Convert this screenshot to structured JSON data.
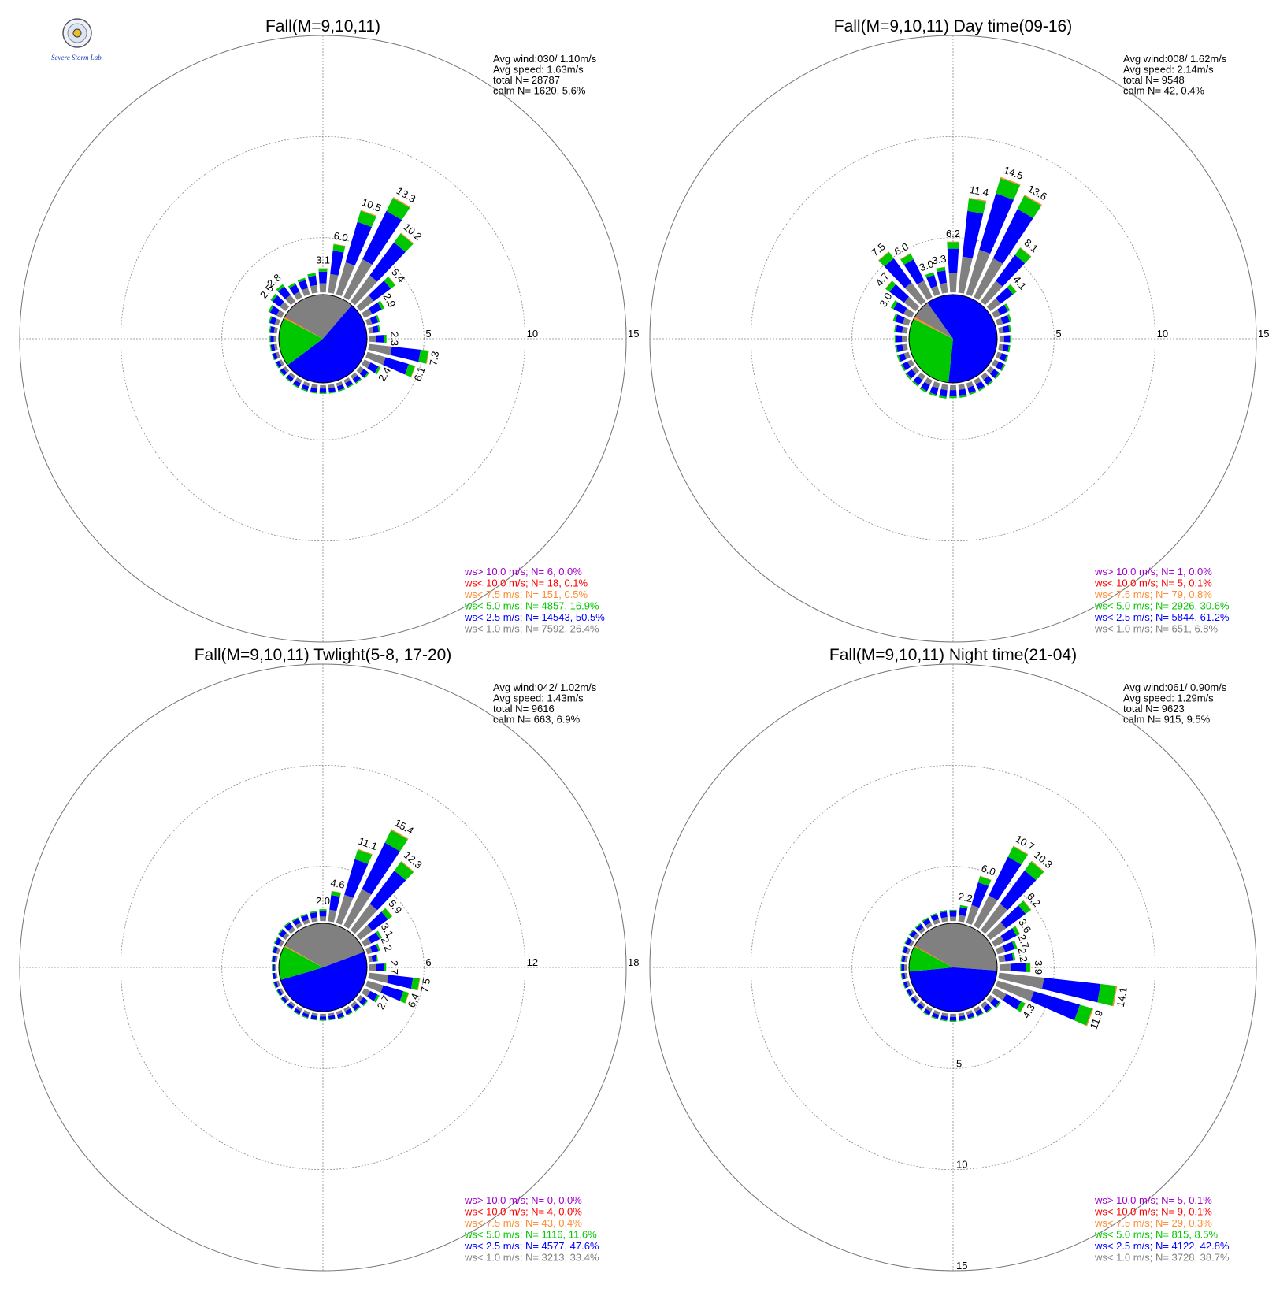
{
  "colors": {
    "gray": "#808080",
    "blue": "#0000ff",
    "green": "#00c800",
    "orange": "#ff8c32",
    "red": "#ff0000",
    "purple": "#a000c8",
    "grid": "#888888"
  },
  "logo": {
    "text": "Severe Storm Lab.",
    "icon": "lab-seal-icon"
  },
  "chart_data": [
    {
      "type": "windrose",
      "title": "Fall(M=9,10,11)",
      "rings": [
        5,
        10,
        15
      ],
      "stats": [
        "Avg wind:030/ 1.10m/s",
        "Avg speed: 1.63m/s",
        "total N=      28787",
        "calm N=   1620,   5.6%"
      ],
      "pie": [
        {
          "class": "ws< 1.0 m/s",
          "share": 26.4,
          "color": "gray"
        },
        {
          "class": "ws< 2.5 m/s",
          "share": 50.5,
          "color": "blue"
        },
        {
          "class": "ws< 5.0 m/s",
          "share": 16.9,
          "color": "green"
        },
        {
          "class": "ws< 7.5 m/s",
          "share": 0.5,
          "color": "orange"
        },
        {
          "class": "ws< 10.0 m/s",
          "share": 0.1,
          "color": "red"
        }
      ],
      "bars": [
        {
          "dir": 0,
          "value": 3.1,
          "label": "3.1"
        },
        {
          "dir": 10,
          "value": 6.0,
          "label": "6.0"
        },
        {
          "dir": 20,
          "value": 10.5,
          "label": "10.5"
        },
        {
          "dir": 30,
          "value": 13.3,
          "label": "13.3"
        },
        {
          "dir": 40,
          "value": 10.2,
          "label": "10.2"
        },
        {
          "dir": 50,
          "value": 5.4,
          "label": "5.4"
        },
        {
          "dir": 60,
          "value": 2.9,
          "label": "2.9"
        },
        {
          "dir": 70,
          "value": 1.8
        },
        {
          "dir": 80,
          "value": 1.6
        },
        {
          "dir": 90,
          "value": 2.3,
          "label": "2.3"
        },
        {
          "dir": 100,
          "value": 7.3,
          "label": "7.3"
        },
        {
          "dir": 110,
          "value": 6.1,
          "label": "6.1"
        },
        {
          "dir": 120,
          "value": 2.4,
          "label": "2.4"
        },
        {
          "dir": 130,
          "value": 1.6
        },
        {
          "dir": 140,
          "value": 1.4
        },
        {
          "dir": 150,
          "value": 1.3
        },
        {
          "dir": 160,
          "value": 1.3
        },
        {
          "dir": 170,
          "value": 1.3
        },
        {
          "dir": 180,
          "value": 1.3
        },
        {
          "dir": 190,
          "value": 1.3
        },
        {
          "dir": 200,
          "value": 1.3
        },
        {
          "dir": 210,
          "value": 1.3
        },
        {
          "dir": 220,
          "value": 1.2
        },
        {
          "dir": 230,
          "value": 1.2
        },
        {
          "dir": 240,
          "value": 1.1
        },
        {
          "dir": 250,
          "value": 1.1
        },
        {
          "dir": 260,
          "value": 1.1
        },
        {
          "dir": 270,
          "value": 1.1
        },
        {
          "dir": 280,
          "value": 1.2
        },
        {
          "dir": 290,
          "value": 1.5
        },
        {
          "dir": 300,
          "value": 2.0
        },
        {
          "dir": 310,
          "value": 2.5,
          "label": "2.5"
        },
        {
          "dir": 320,
          "value": 2.8,
          "label": "2.8"
        },
        {
          "dir": 330,
          "value": 2.2
        },
        {
          "dir": 340,
          "value": 2.3
        },
        {
          "dir": 350,
          "value": 2.6
        }
      ],
      "legend": [
        {
          "text": "ws> 10.0 m/s; N=     6,  0.0%",
          "color": "purple"
        },
        {
          "text": "ws< 10.0 m/s; N=    18,  0.1%",
          "color": "red"
        },
        {
          "text": "ws<  7.5 m/s; N=   151,  0.5%",
          "color": "orange"
        },
        {
          "text": "ws<  5.0 m/s; N=  4857, 16.9%",
          "color": "green"
        },
        {
          "text": "ws<  2.5 m/s; N= 14543, 50.5%",
          "color": "blue"
        },
        {
          "text": "ws<  1.0 m/s; N=  7592, 26.4%",
          "color": "gray"
        }
      ]
    },
    {
      "type": "windrose",
      "title": "Fall(M=9,10,11) Day time(09-16)",
      "rings": [
        5,
        10,
        15
      ],
      "stats": [
        "Avg wind:008/ 1.62m/s",
        "Avg speed: 2.14m/s",
        "total N=      9548",
        "calm N=     42,   0.4%"
      ],
      "pie": [
        {
          "class": "ws< 1.0 m/s",
          "share": 6.8,
          "color": "gray"
        },
        {
          "class": "ws< 2.5 m/s",
          "share": 61.2,
          "color": "blue"
        },
        {
          "class": "ws< 5.0 m/s",
          "share": 30.6,
          "color": "green"
        },
        {
          "class": "ws< 7.5 m/s",
          "share": 0.8,
          "color": "orange"
        },
        {
          "class": "ws< 10.0 m/s",
          "share": 0.1,
          "color": "red"
        }
      ],
      "bars": [
        {
          "dir": 0,
          "value": 6.2,
          "label": "6.2"
        },
        {
          "dir": 10,
          "value": 11.4,
          "label": "11.4"
        },
        {
          "dir": 20,
          "value": 14.5,
          "label": "14.5"
        },
        {
          "dir": 30,
          "value": 13.6,
          "label": "13.6"
        },
        {
          "dir": 40,
          "value": 8.1,
          "label": "8.1"
        },
        {
          "dir": 50,
          "value": 4.1,
          "label": "4.1"
        },
        {
          "dir": 60,
          "value": 2.3
        },
        {
          "dir": 70,
          "value": 2.0
        },
        {
          "dir": 80,
          "value": 1.7
        },
        {
          "dir": 90,
          "value": 1.7
        },
        {
          "dir": 100,
          "value": 1.6
        },
        {
          "dir": 110,
          "value": 1.6
        },
        {
          "dir": 120,
          "value": 1.7
        },
        {
          "dir": 130,
          "value": 1.7
        },
        {
          "dir": 140,
          "value": 1.7
        },
        {
          "dir": 150,
          "value": 1.7
        },
        {
          "dir": 160,
          "value": 1.7
        },
        {
          "dir": 170,
          "value": 1.8
        },
        {
          "dir": 180,
          "value": 1.8
        },
        {
          "dir": 190,
          "value": 1.9
        },
        {
          "dir": 200,
          "value": 1.9
        },
        {
          "dir": 210,
          "value": 1.9
        },
        {
          "dir": 220,
          "value": 1.8
        },
        {
          "dir": 230,
          "value": 1.8
        },
        {
          "dir": 240,
          "value": 1.7
        },
        {
          "dir": 250,
          "value": 1.7
        },
        {
          "dir": 260,
          "value": 1.7
        },
        {
          "dir": 270,
          "value": 1.7
        },
        {
          "dir": 280,
          "value": 1.8
        },
        {
          "dir": 290,
          "value": 2.2
        },
        {
          "dir": 300,
          "value": 3.0,
          "label": "3.0"
        },
        {
          "dir": 310,
          "value": 4.7,
          "label": "4.7"
        },
        {
          "dir": 320,
          "value": 7.5,
          "label": "7.5"
        },
        {
          "dir": 330,
          "value": 6.0,
          "label": "6.0"
        },
        {
          "dir": 340,
          "value": 3.0,
          "label": "3.0"
        },
        {
          "dir": 350,
          "value": 3.3,
          "label": "3.3"
        }
      ],
      "legend": [
        {
          "text": "ws> 10.0 m/s; N=     1,  0.0%",
          "color": "purple"
        },
        {
          "text": "ws< 10.0 m/s; N=     5,  0.1%",
          "color": "red"
        },
        {
          "text": "ws<  7.5 m/s; N=    79,  0.8%",
          "color": "orange"
        },
        {
          "text": "ws<  5.0 m/s; N=  2926, 30.6%",
          "color": "green"
        },
        {
          "text": "ws<  2.5 m/s; N=  5844, 61.2%",
          "color": "blue"
        },
        {
          "text": "ws<  1.0 m/s; N=   651,  6.8%",
          "color": "gray"
        }
      ]
    },
    {
      "type": "windrose",
      "title": "Fall(M=9,10,11) Twlight(5-8, 17-20)",
      "rings": [
        6,
        12,
        18
      ],
      "stats": [
        "Avg wind:042/ 1.02m/s",
        "Avg speed: 1.43m/s",
        "total N=      9616",
        "calm N=    663,   6.9%"
      ],
      "pie": [
        {
          "class": "ws< 1.0 m/s",
          "share": 33.4,
          "color": "gray"
        },
        {
          "class": "ws< 2.5 m/s",
          "share": 47.6,
          "color": "blue"
        },
        {
          "class": "ws< 5.0 m/s",
          "share": 11.6,
          "color": "green"
        },
        {
          "class": "ws< 7.5 m/s",
          "share": 0.4,
          "color": "orange"
        },
        {
          "class": "ws< 10.0 m/s",
          "share": 0.0,
          "color": "red"
        }
      ],
      "bars": [
        {
          "dir": 0,
          "value": 2.0,
          "label": "2.0"
        },
        {
          "dir": 10,
          "value": 4.6,
          "label": "4.6"
        },
        {
          "dir": 20,
          "value": 11.1,
          "label": "11.1"
        },
        {
          "dir": 30,
          "value": 15.4,
          "label": "15.4"
        },
        {
          "dir": 40,
          "value": 12.3,
          "label": "12.3"
        },
        {
          "dir": 50,
          "value": 5.9,
          "label": "5.9"
        },
        {
          "dir": 60,
          "value": 3.1,
          "label": "3.1"
        },
        {
          "dir": 70,
          "value": 2.2,
          "label": "2.2"
        },
        {
          "dir": 80,
          "value": 1.6
        },
        {
          "dir": 90,
          "value": 2.7,
          "label": "2.7"
        },
        {
          "dir": 100,
          "value": 7.5,
          "label": "7.5"
        },
        {
          "dir": 110,
          "value": 6.4,
          "label": "6.4"
        },
        {
          "dir": 120,
          "value": 2.7,
          "label": "2.7"
        },
        {
          "dir": 130,
          "value": 1.7
        },
        {
          "dir": 140,
          "value": 1.5
        },
        {
          "dir": 150,
          "value": 1.4
        },
        {
          "dir": 160,
          "value": 1.4
        },
        {
          "dir": 170,
          "value": 1.3
        },
        {
          "dir": 180,
          "value": 1.3
        },
        {
          "dir": 190,
          "value": 1.3
        },
        {
          "dir": 200,
          "value": 1.3
        },
        {
          "dir": 210,
          "value": 1.3
        },
        {
          "dir": 220,
          "value": 1.2
        },
        {
          "dir": 230,
          "value": 1.2
        },
        {
          "dir": 240,
          "value": 1.1
        },
        {
          "dir": 250,
          "value": 1.1
        },
        {
          "dir": 260,
          "value": 1.0
        },
        {
          "dir": 270,
          "value": 1.0
        },
        {
          "dir": 280,
          "value": 1.1
        },
        {
          "dir": 290,
          "value": 1.3
        },
        {
          "dir": 300,
          "value": 1.5
        },
        {
          "dir": 310,
          "value": 1.7
        },
        {
          "dir": 320,
          "value": 1.8
        },
        {
          "dir": 330,
          "value": 1.7
        },
        {
          "dir": 340,
          "value": 1.7
        },
        {
          "dir": 350,
          "value": 1.8
        }
      ],
      "legend": [
        {
          "text": "ws> 10.0 m/s; N=     0,  0.0%",
          "color": "purple"
        },
        {
          "text": "ws< 10.0 m/s; N=     4,  0.0%",
          "color": "red"
        },
        {
          "text": "ws<  7.5 m/s; N=    43,  0.4%",
          "color": "orange"
        },
        {
          "text": "ws<  5.0 m/s; N=  1116, 11.6%",
          "color": "green"
        },
        {
          "text": "ws<  2.5 m/s; N=  4577, 47.6%",
          "color": "blue"
        },
        {
          "text": "ws<  1.0 m/s; N=  3213, 33.4%",
          "color": "gray"
        }
      ]
    },
    {
      "type": "windrose",
      "title": "Fall(M=9,10,11) Night time(21-04)",
      "rings": [
        5,
        10,
        15
      ],
      "stats": [
        "Avg wind:061/ 0.90m/s",
        "Avg speed: 1.29m/s",
        "total N=      9623",
        "calm N=    915,   9.5%"
      ],
      "pie": [
        {
          "class": "ws< 1.0 m/s",
          "share": 38.7,
          "color": "gray"
        },
        {
          "class": "ws< 2.5 m/s",
          "share": 42.8,
          "color": "blue"
        },
        {
          "class": "ws< 5.0 m/s",
          "share": 8.5,
          "color": "green"
        },
        {
          "class": "ws< 7.5 m/s",
          "share": 0.3,
          "color": "orange"
        },
        {
          "class": "ws< 10.0 m/s",
          "share": 0.1,
          "color": "red"
        }
      ],
      "bars": [
        {
          "dir": 0,
          "value": 1.6
        },
        {
          "dir": 10,
          "value": 2.2,
          "label": "2.2"
        },
        {
          "dir": 20,
          "value": 6.0,
          "label": "6.0"
        },
        {
          "dir": 30,
          "value": 10.7,
          "label": "10.7"
        },
        {
          "dir": 40,
          "value": 10.3,
          "label": "10.3"
        },
        {
          "dir": 50,
          "value": 6.2,
          "label": "6.2"
        },
        {
          "dir": 60,
          "value": 3.6,
          "label": "3.6"
        },
        {
          "dir": 70,
          "value": 2.7,
          "label": "2.7"
        },
        {
          "dir": 80,
          "value": 2.2,
          "label": "2.2"
        },
        {
          "dir": 90,
          "value": 3.9,
          "label": "3.9"
        },
        {
          "dir": 100,
          "value": 14.1,
          "label": "14.1"
        },
        {
          "dir": 110,
          "value": 11.9,
          "label": "11.9"
        },
        {
          "dir": 120,
          "value": 4.3,
          "label": "4.3"
        },
        {
          "dir": 130,
          "value": 1.8
        },
        {
          "dir": 140,
          "value": 1.5
        },
        {
          "dir": 150,
          "value": 1.3
        },
        {
          "dir": 160,
          "value": 1.2
        },
        {
          "dir": 170,
          "value": 1.2
        },
        {
          "dir": 180,
          "value": 1.2
        },
        {
          "dir": 190,
          "value": 1.2
        },
        {
          "dir": 200,
          "value": 1.2
        },
        {
          "dir": 210,
          "value": 1.2
        },
        {
          "dir": 220,
          "value": 1.1
        },
        {
          "dir": 230,
          "value": 1.1
        },
        {
          "dir": 240,
          "value": 1.0
        },
        {
          "dir": 250,
          "value": 1.0
        },
        {
          "dir": 260,
          "value": 1.0
        },
        {
          "dir": 270,
          "value": 1.0
        },
        {
          "dir": 280,
          "value": 1.0
        },
        {
          "dir": 290,
          "value": 1.1
        },
        {
          "dir": 300,
          "value": 1.2
        },
        {
          "dir": 310,
          "value": 1.3
        },
        {
          "dir": 320,
          "value": 1.3
        },
        {
          "dir": 330,
          "value": 1.4
        },
        {
          "dir": 340,
          "value": 1.5
        },
        {
          "dir": 350,
          "value": 1.6
        }
      ],
      "legend": [
        {
          "text": "ws> 10.0 m/s; N=     5,  0.1%",
          "color": "purple"
        },
        {
          "text": "ws< 10.0 m/s; N=     9,  0.1%",
          "color": "red"
        },
        {
          "text": "ws<  7.5 m/s; N=    29,  0.3%",
          "color": "orange"
        },
        {
          "text": "ws<  5.0 m/s; N=   815,  8.5%",
          "color": "green"
        },
        {
          "text": "ws<  2.5 m/s; N=  4122, 42.8%",
          "color": "blue"
        },
        {
          "text": "ws<  1.0 m/s; N=  3728, 38.7%",
          "color": "gray"
        }
      ]
    }
  ]
}
